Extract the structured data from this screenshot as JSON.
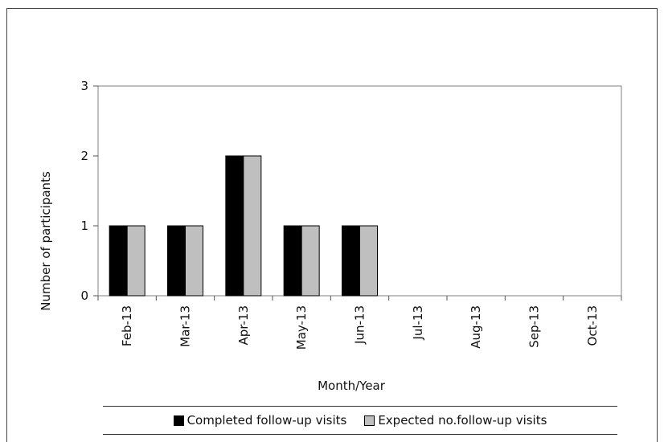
{
  "chart_data": {
    "type": "bar",
    "categories": [
      "Feb-13",
      "Mar-13",
      "Apr-13",
      "May-13",
      "Jun-13",
      "Jul-13",
      "Aug-13",
      "Sep-13",
      "Oct-13"
    ],
    "series": [
      {
        "name": "Completed follow-up visits",
        "values": [
          1,
          1,
          2,
          1,
          1,
          0,
          0,
          0,
          0
        ],
        "color": "#000000"
      },
      {
        "name": "Expected no.follow-up visits",
        "values": [
          1,
          1,
          2,
          1,
          1,
          0,
          0,
          0,
          0
        ],
        "color": "#bfbfbf"
      }
    ],
    "xlabel": "Month/Year",
    "ylabel": "Number of participants",
    "ylim": [
      0,
      3
    ],
    "yticks": [
      0,
      1,
      2,
      3
    ],
    "grid": false,
    "legend_position": "bottom"
  }
}
